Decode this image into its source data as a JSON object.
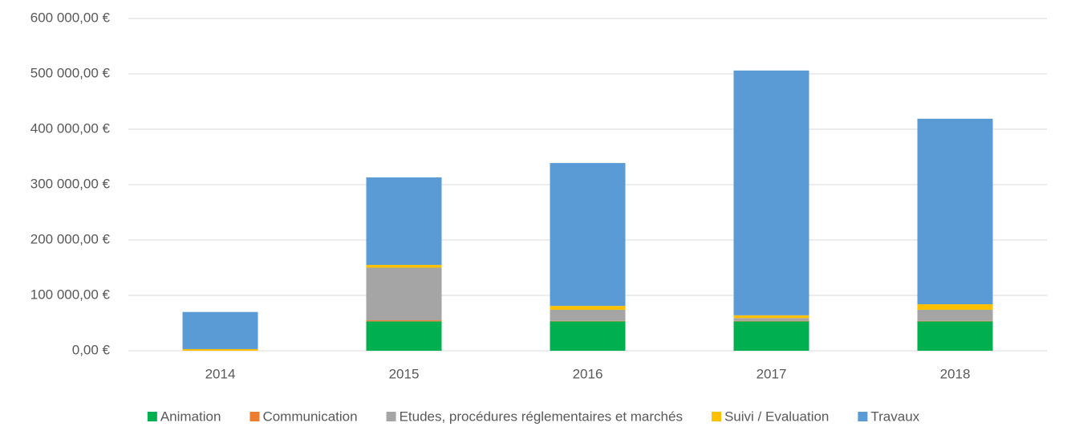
{
  "chart_data": {
    "type": "stacked_bar",
    "categories": [
      "2014",
      "2015",
      "2016",
      "2017",
      "2018"
    ],
    "series": [
      {
        "name": "Animation",
        "color": "#00b050",
        "values": [
          0,
          53000,
          53000,
          53000,
          53000
        ]
      },
      {
        "name": "Communication",
        "color": "#ed7d31",
        "values": [
          0,
          2000,
          1000,
          1000,
          1000
        ]
      },
      {
        "name": "Etudes, procédures réglementaires et marchés",
        "color": "#a5a5a5",
        "values": [
          0,
          95000,
          20000,
          5000,
          20000
        ]
      },
      {
        "name": "Suivi / Evaluation",
        "color": "#ffc000",
        "values": [
          3000,
          5000,
          7000,
          5000,
          10000
        ]
      },
      {
        "name": "Travaux",
        "color": "#5b9bd5",
        "values": [
          67000,
          158000,
          258000,
          442000,
          335000
        ]
      }
    ],
    "ylim": [
      0,
      600000
    ],
    "yticks": [
      {
        "value": 0,
        "label": "0,00 €"
      },
      {
        "value": 100000,
        "label": "100 000,00 €"
      },
      {
        "value": 200000,
        "label": "200 000,00 €"
      },
      {
        "value": 300000,
        "label": "300 000,00 €"
      },
      {
        "value": 400000,
        "label": "400 000,00 €"
      },
      {
        "value": 500000,
        "label": "500 000,00 €"
      },
      {
        "value": 600000,
        "label": "600 000,00 €"
      }
    ],
    "grid": true,
    "legend": "bottom"
  }
}
